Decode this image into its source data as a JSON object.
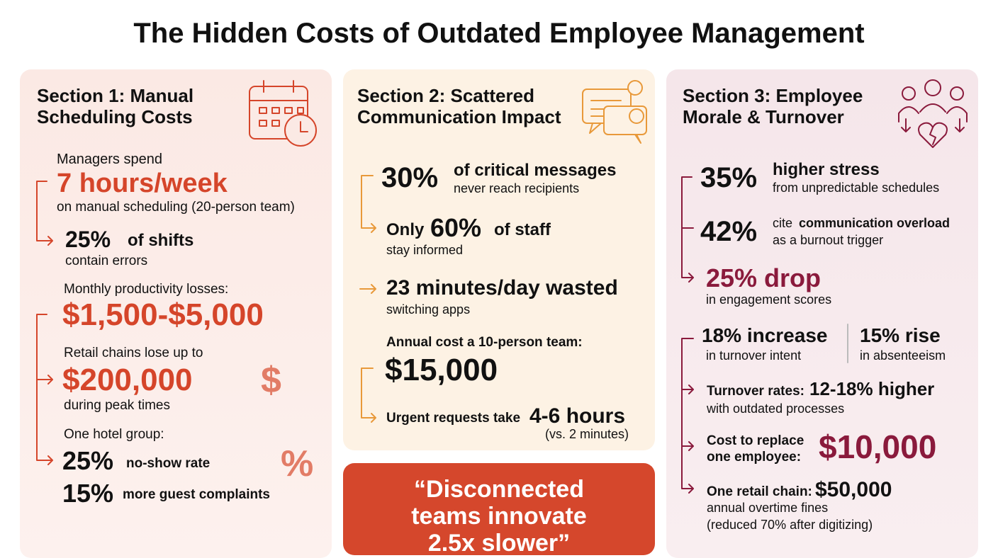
{
  "header": {
    "title": "The Hidden Costs of Outdated Employee Management"
  },
  "sections": [
    {
      "title": "Section 1: Manual Scheduling Costs",
      "hours": {
        "lead": "Managers spend",
        "value": "7 hours/week",
        "detail": "on manual scheduling (20-person team)"
      },
      "errors": {
        "value": "25%",
        "label": "of shifts",
        "detail": "contain errors"
      },
      "losses": {
        "lead": "Monthly productivity losses:",
        "value": "$1,500-$5,000"
      },
      "retail": {
        "lead": "Retail chains lose up to",
        "value": "$200,000",
        "detail": "during peak times",
        "icon": "$"
      },
      "hotel": {
        "lead": "One hotel group:",
        "no_show_value": "25%",
        "no_show_label": "no-show rate",
        "complaints_value": "15%",
        "complaints_label": "more guest complaints",
        "icon": "%"
      }
    },
    {
      "title": "Section 2: Scattered Communication Impact",
      "messages": {
        "value": "30%",
        "label": "of critical messages",
        "detail": "never reach recipients"
      },
      "informed": {
        "lead": "Only",
        "value": "60%",
        "label": "of staff",
        "detail": "stay informed"
      },
      "switching": {
        "value": "23 minutes/day wasted",
        "detail": "switching apps"
      },
      "annual": {
        "lead": "Annual cost a 10-person team:",
        "value": "$15,000"
      },
      "urgent": {
        "lead": "Urgent requests take",
        "value": "4-6 hours",
        "detail": "(vs. 2 minutes)"
      },
      "quote": "“Disconnected teams innovate 2.5x slower”"
    },
    {
      "title": "Section 3: Employee Morale & Turnover",
      "stress": {
        "value": "35%",
        "label": "higher stress",
        "detail": "from unpredictable schedules"
      },
      "overload": {
        "value": "42%",
        "lead": "cite",
        "label": "communication overload",
        "detail": "as a burnout trigger"
      },
      "engagement": {
        "value": "25% drop",
        "detail": "in engagement scores"
      },
      "turnover_intent": {
        "value": "18% increase",
        "detail": "in turnover intent"
      },
      "absenteeism": {
        "value": "15% rise",
        "detail": "in absenteeism"
      },
      "turnover_rates": {
        "lead": "Turnover rates:",
        "value": "12-18% higher",
        "detail": "with outdated processes"
      },
      "replace": {
        "lead": "Cost to replace one employee:",
        "value": "$10,000"
      },
      "retail": {
        "lead": "One retail chain:",
        "value": "$50,000",
        "detail": "annual overtime fines",
        "note": "(reduced 70% after digitizing)"
      }
    }
  ]
}
